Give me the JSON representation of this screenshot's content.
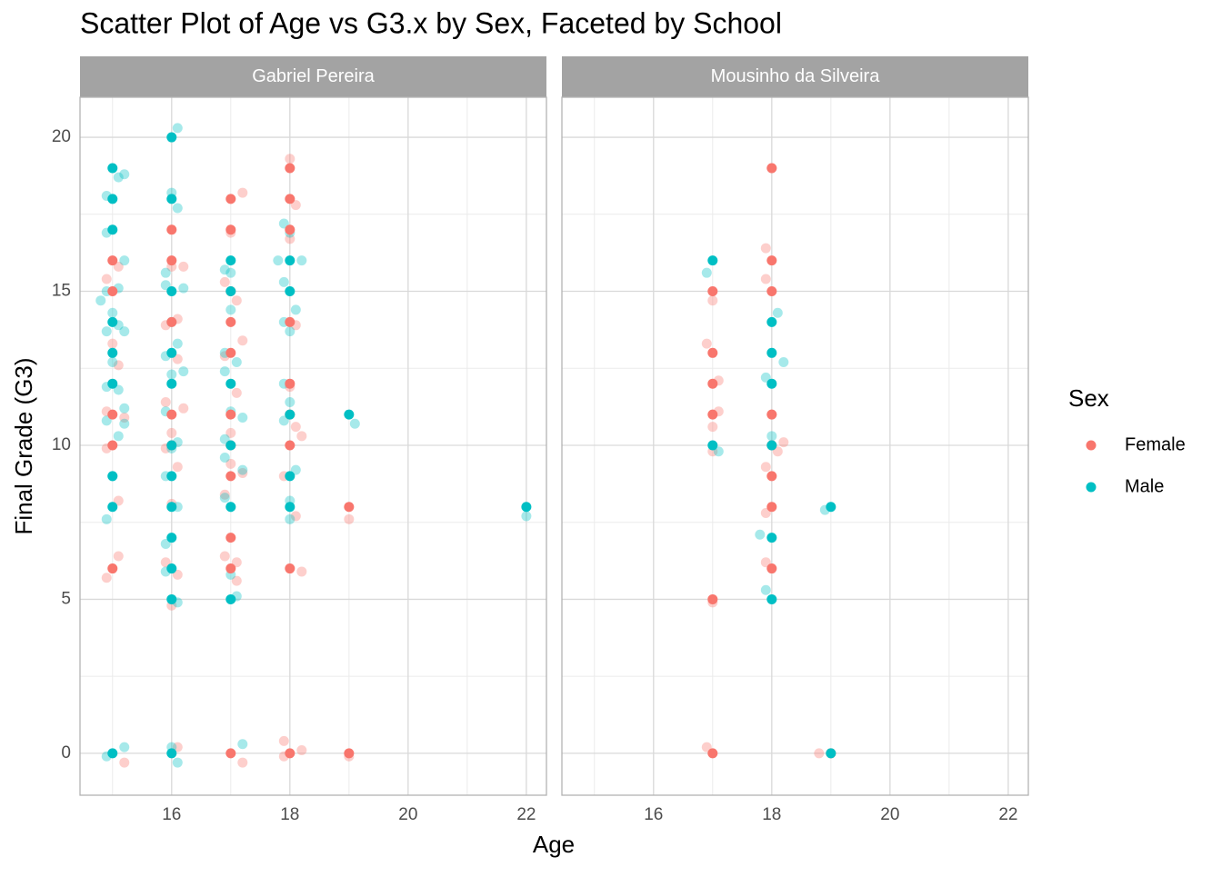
{
  "chart_data": {
    "type": "scatter",
    "title": "Scatter Plot of Age vs G3.x by Sex, Faceted by School",
    "x_label": "Age",
    "y_label": "Final Grade (G3)",
    "legend_title": "Sex",
    "xlim": [
      14.45,
      22.34
    ],
    "ylim": [
      -1.36,
      21.3
    ],
    "xticks": [
      16,
      18,
      20,
      22
    ],
    "yticks": [
      0,
      5,
      10,
      15,
      20
    ],
    "grid": true,
    "facets": [
      {
        "label": "Gabriel Pereira",
        "series": [
          {
            "name": "Female",
            "color": "#F8766D",
            "x": [
              15,
              15,
              15,
              15,
              15,
              16,
              16,
              16,
              16,
              16,
              17,
              17,
              17,
              17,
              17,
              17,
              17,
              17,
              17,
              17,
              17,
              18,
              18,
              18,
              18,
              18,
              18,
              18,
              18,
              18,
              19,
              19
            ],
            "values": [
              16,
              15,
              11,
              10,
              6,
              17,
              16,
              14,
              11,
              10,
              18,
              17,
              15,
              14,
              13,
              11,
              10,
              9,
              7,
              6,
              0,
              19,
              18,
              17,
              14,
              12,
              11,
              10,
              6,
              0,
              8,
              0
            ],
            "jitter_x": [
              14.9,
              15.1,
              14.9,
              15.2,
              14.9,
              15.1,
              15.1,
              14.9,
              15.2,
              15.1,
              15.0,
              16.0,
              16.1,
              15.9,
              16.2,
              16.0,
              15.9,
              16.1,
              16.0,
              15.9,
              16.1,
              16.0,
              16.1,
              16.2,
              15.9,
              16.1,
              17.2,
              17.0,
              16.9,
              17.1,
              17.2,
              16.9,
              17.1,
              17.0,
              17.2,
              16.9,
              17.1,
              16.9,
              17.1,
              17.2,
              17.0,
              18.0,
              18.1,
              18.0,
              18.1,
              18.0,
              18.1,
              18.2,
              17.9,
              18.1,
              18.2,
              17.9,
              18.2,
              17.9,
              19.0,
              19.0
            ],
            "jitter_values": [
              15.4,
              15.8,
              11.1,
              10.9,
              9.9,
              8.2,
              6.4,
              5.7,
              -0.3,
              12.6,
              13.3,
              15.8,
              14.1,
              13.9,
              11.2,
              10.4,
              9.9,
              9.3,
              8.1,
              6.2,
              5.8,
              4.8,
              0.2,
              15.8,
              11.4,
              12.8,
              18.2,
              16.9,
              15.3,
              14.7,
              13.4,
              12.9,
              11.7,
              10.4,
              9.1,
              8.4,
              6.2,
              6.4,
              5.6,
              -0.3,
              9.4,
              19.3,
              17.8,
              16.7,
              13.9,
              11.9,
              10.6,
              10.3,
              9.0,
              7.7,
              5.9,
              0.4,
              0.1,
              -0.1,
              7.6,
              -0.1
            ]
          },
          {
            "name": "Male",
            "color": "#00BFC4",
            "x": [
              15,
              15,
              15,
              15,
              15,
              15,
              15,
              15,
              15,
              16,
              16,
              16,
              16,
              16,
              16,
              16,
              16,
              16,
              16,
              16,
              16,
              17,
              17,
              17,
              17,
              17,
              17,
              18,
              18,
              18,
              18,
              18,
              19,
              22
            ],
            "values": [
              19,
              18,
              17,
              14,
              13,
              12,
              9,
              8,
              0,
              20,
              18,
              15,
              13,
              12,
              10,
              9,
              8,
              7,
              6,
              5,
              0,
              16,
              15,
              12,
              10,
              8,
              5,
              16,
              15,
              11,
              9,
              8,
              11,
              8
            ],
            "jitter_x": [
              14.9,
              15.1,
              15.2,
              14.9,
              15.2,
              14.9,
              15.1,
              14.8,
              15.0,
              15.1,
              15.2,
              14.9,
              15.0,
              14.9,
              15.1,
              15.2,
              14.9,
              15.1,
              15.2,
              15.0,
              14.9,
              15.2,
              14.9,
              16.1,
              16.0,
              16.1,
              15.9,
              16.2,
              15.9,
              16.0,
              16.1,
              15.9,
              16.0,
              16.2,
              15.9,
              16.1,
              16.0,
              15.9,
              16.1,
              15.9,
              15.9,
              16.1,
              16.1,
              16.0,
              17.0,
              16.9,
              17.0,
              16.9,
              17.1,
              16.9,
              17.0,
              17.2,
              16.9,
              16.9,
              17.2,
              16.9,
              17.0,
              17.0,
              17.1,
              17.2,
              17.9,
              18.0,
              17.8,
              18.2,
              17.9,
              18.1,
              17.9,
              18.0,
              17.9,
              18.0,
              17.9,
              18.1,
              18.0,
              18.0,
              19.1,
              22.0
            ],
            "jitter_values": [
              18.1,
              18.7,
              18.8,
              16.9,
              16.0,
              15.0,
              15.1,
              14.7,
              14.3,
              13.9,
              13.7,
              13.7,
              12.7,
              11.9,
              11.8,
              11.2,
              10.8,
              10.3,
              10.7,
              9.0,
              7.6,
              0.2,
              -0.1,
              20.3,
              18.2,
              17.7,
              15.6,
              15.1,
              15.2,
              14.0,
              13.3,
              12.9,
              12.3,
              12.4,
              11.1,
              10.1,
              9.9,
              9.0,
              8.0,
              6.8,
              5.9,
              4.9,
              -0.3,
              0.2,
              15.6,
              15.7,
              14.4,
              13.0,
              12.7,
              12.4,
              11.1,
              10.9,
              10.2,
              9.6,
              9.2,
              8.3,
              8.0,
              5.8,
              5.1,
              0.3,
              17.2,
              16.9,
              16.0,
              16.0,
              15.3,
              14.4,
              14.0,
              13.7,
              12.0,
              11.4,
              10.8,
              9.2,
              8.2,
              7.6,
              10.7,
              7.7
            ]
          }
        ]
      },
      {
        "label": "Mousinho da Silveira",
        "series": [
          {
            "name": "Female",
            "color": "#F8766D",
            "x": [
              17,
              17,
              17,
              17,
              17,
              17,
              18,
              18,
              18,
              18,
              18,
              18,
              18,
              18,
              19
            ],
            "values": [
              15,
              13,
              12,
              11,
              5,
              0,
              19,
              16,
              15,
              11,
              10,
              9,
              8,
              6,
              0
            ],
            "jitter_x": [
              17.0,
              16.9,
              17.1,
              17.1,
              17.0,
              17.0,
              17.0,
              16.9,
              17.9,
              17.9,
              18.0,
              18.2,
              18.1,
              17.9,
              17.9,
              17.9,
              18.0,
              18.8
            ],
            "jitter_values": [
              14.7,
              13.3,
              12.1,
              11.1,
              10.6,
              9.8,
              4.9,
              0.2,
              16.4,
              15.4,
              11.0,
              10.1,
              9.8,
              9.3,
              7.8,
              6.2,
              19.0,
              0.0
            ]
          },
          {
            "name": "Male",
            "color": "#00BFC4",
            "x": [
              17,
              17,
              18,
              18,
              18,
              18,
              18,
              18,
              19,
              19
            ],
            "values": [
              16,
              10,
              14,
              13,
              12,
              10,
              7,
              5,
              8,
              0
            ],
            "jitter_x": [
              16.9,
              17.1,
              18.1,
              18.2,
              17.9,
              18.0,
              17.8,
              17.9,
              18.9
            ],
            "jitter_values": [
              15.6,
              9.8,
              14.3,
              12.7,
              12.2,
              10.3,
              7.1,
              5.3,
              7.9
            ]
          }
        ]
      }
    ]
  }
}
